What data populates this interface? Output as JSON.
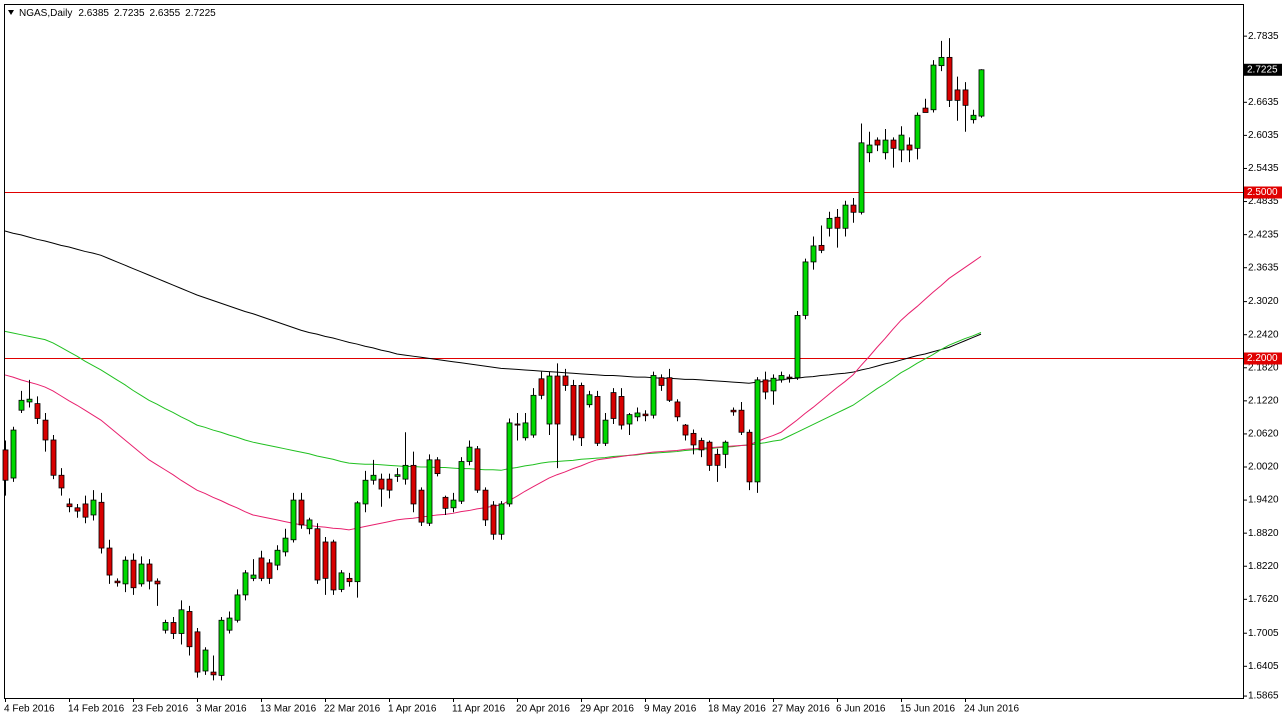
{
  "chart_data": {
    "type": "candlestick",
    "symbol": "NGAS,Daily",
    "ylim": [
      1.583,
      2.84
    ],
    "yticks": [
      2.7835,
      2.6635,
      2.6035,
      2.5435,
      2.4835,
      2.4235,
      2.3635,
      {
        "value": 2.302,
        "label": "2.3020"
      },
      {
        "value": 2.242,
        "label": "2.2420"
      },
      {
        "value": 2.182,
        "label": "2.1820"
      },
      {
        "value": 2.122,
        "label": "2.1220"
      },
      {
        "value": 2.062,
        "label": "2.0620"
      },
      {
        "value": 2.002,
        "label": "2.0020"
      },
      {
        "value": 1.942,
        "label": "1.9420"
      },
      {
        "value": 1.882,
        "label": "1.8820"
      },
      {
        "value": 1.822,
        "label": "1.8220"
      },
      {
        "value": 1.762,
        "label": "1.7620"
      },
      1.7005,
      1.6405,
      1.5865
    ],
    "up_color": "#00d800",
    "down_color": "#d80000",
    "hlines": [
      {
        "value": 2.5,
        "label": "2.5000",
        "color": "#e00000"
      },
      {
        "value": 2.2,
        "label": "2.2000",
        "color": "#e00000"
      }
    ],
    "categories": [
      "4 Feb 2016",
      null,
      null,
      null,
      null,
      null,
      null,
      null,
      "14 Feb 2016",
      null,
      null,
      null,
      null,
      null,
      null,
      null,
      "23 Feb 2016",
      null,
      null,
      null,
      null,
      null,
      null,
      null,
      "3 Mar 2016",
      null,
      null,
      null,
      null,
      null,
      null,
      null,
      "13 Mar 2016",
      null,
      null,
      null,
      null,
      null,
      null,
      null,
      "22 Mar 2016",
      null,
      null,
      null,
      null,
      null,
      null,
      null,
      "1 Apr 2016",
      null,
      null,
      null,
      null,
      null,
      null,
      null,
      "11 Apr 2016",
      null,
      null,
      null,
      null,
      null,
      null,
      null,
      "20 Apr 2016",
      null,
      null,
      null,
      null,
      null,
      null,
      null,
      "29 Apr 2016",
      null,
      null,
      null,
      null,
      null,
      null,
      null,
      "9 May 2016",
      null,
      null,
      null,
      null,
      null,
      null,
      null,
      "18 May 2016",
      null,
      null,
      null,
      null,
      null,
      null,
      null,
      "27 May 2016",
      null,
      null,
      null,
      null,
      null,
      null,
      null,
      "6 Jun 2016",
      null,
      null,
      null,
      null,
      null,
      null,
      null,
      "15 Jun 2016",
      null,
      null,
      null,
      null,
      null,
      null,
      null,
      "24 Jun 2016",
      null,
      null
    ],
    "candles": [
      [
        2.033,
        2.05,
        1.95,
        1.978
      ],
      [
        1.982,
        2.075,
        1.975,
        2.069
      ],
      [
        2.105,
        2.14,
        2.1,
        2.123
      ],
      [
        2.12,
        2.16,
        2.11,
        2.125
      ],
      [
        2.117,
        2.13,
        2.08,
        2.09
      ],
      [
        2.087,
        2.1,
        2.03,
        2.051
      ],
      [
        2.051,
        2.06,
        1.98,
        1.987
      ],
      [
        1.987,
        2.0,
        1.95,
        1.964
      ],
      [
        1.935,
        1.945,
        1.92,
        1.93
      ],
      [
        1.928,
        1.935,
        1.91,
        1.922
      ],
      [
        1.935,
        1.95,
        1.9,
        1.911
      ],
      [
        1.915,
        1.96,
        1.905,
        1.942
      ],
      [
        1.938,
        1.955,
        1.845,
        1.855
      ],
      [
        1.855,
        1.87,
        1.79,
        1.806
      ],
      [
        1.795,
        1.8,
        1.785,
        1.792
      ],
      [
        1.79,
        1.84,
        1.775,
        1.833
      ],
      [
        1.833,
        1.845,
        1.77,
        1.783
      ],
      [
        1.79,
        1.84,
        1.785,
        1.826
      ],
      [
        1.826,
        1.835,
        1.78,
        1.795
      ],
      [
        1.795,
        1.8,
        1.75,
        1.79
      ],
      [
        1.706,
        1.725,
        1.7,
        1.72
      ],
      [
        1.72,
        1.73,
        1.69,
        1.7
      ],
      [
        1.7,
        1.76,
        1.68,
        1.743
      ],
      [
        1.74,
        1.75,
        1.66,
        1.676
      ],
      [
        1.703,
        1.71,
        1.62,
        1.63
      ],
      [
        1.632,
        1.675,
        1.625,
        1.67
      ],
      [
        1.63,
        1.66,
        1.615,
        1.625
      ],
      [
        1.624,
        1.73,
        1.615,
        1.724
      ],
      [
        1.706,
        1.74,
        1.7,
        1.728
      ],
      [
        1.724,
        1.78,
        1.72,
        1.77
      ],
      [
        1.77,
        1.815,
        1.76,
        1.81
      ],
      [
        1.8,
        1.835,
        1.795,
        1.806
      ],
      [
        1.837,
        1.85,
        1.795,
        1.8
      ],
      [
        1.828,
        1.835,
        1.79,
        1.8
      ],
      [
        1.824,
        1.86,
        1.815,
        1.851
      ],
      [
        1.848,
        1.89,
        1.84,
        1.873
      ],
      [
        1.87,
        1.955,
        1.865,
        1.942
      ],
      [
        1.942,
        1.955,
        1.89,
        1.897
      ],
      [
        1.89,
        1.91,
        1.88,
        1.906
      ],
      [
        1.89,
        1.9,
        1.79,
        1.797
      ],
      [
        1.866,
        1.875,
        1.77,
        1.8
      ],
      [
        1.866,
        1.87,
        1.77,
        1.779
      ],
      [
        1.78,
        1.815,
        1.775,
        1.81
      ],
      [
        1.8,
        1.81,
        1.785,
        1.794
      ],
      [
        1.794,
        1.94,
        1.765,
        1.937
      ],
      [
        1.935,
        1.995,
        1.92,
        1.978
      ],
      [
        1.978,
        2.015,
        1.97,
        1.987
      ],
      [
        1.98,
        1.99,
        1.93,
        1.962
      ],
      [
        1.98,
        1.99,
        1.945,
        1.96
      ],
      [
        1.985,
        2.0,
        1.975,
        1.988
      ],
      [
        1.98,
        2.065,
        1.97,
        2.005
      ],
      [
        2.005,
        2.03,
        1.92,
        1.935
      ],
      [
        1.96,
        1.965,
        1.895,
        1.902
      ],
      [
        1.9,
        2.025,
        1.895,
        2.015
      ],
      [
        2.015,
        2.02,
        1.985,
        1.99
      ],
      [
        1.947,
        1.95,
        1.915,
        1.927
      ],
      [
        1.928,
        1.955,
        1.92,
        1.942
      ],
      [
        1.94,
        2.02,
        1.935,
        2.012
      ],
      [
        2.012,
        2.05,
        2.005,
        2.038
      ],
      [
        2.035,
        2.04,
        1.955,
        1.96
      ],
      [
        1.96,
        1.965,
        1.895,
        1.906
      ],
      [
        1.933,
        1.94,
        1.87,
        1.88
      ],
      [
        1.88,
        1.94,
        1.87,
        1.935
      ],
      [
        1.935,
        2.09,
        1.93,
        2.082
      ],
      [
        2.08,
        2.1,
        2.05,
        2.078
      ],
      [
        2.055,
        2.1,
        2.05,
        2.082
      ],
      [
        2.06,
        2.145,
        2.055,
        2.132
      ],
      [
        2.162,
        2.175,
        2.125,
        2.132
      ],
      [
        2.08,
        2.175,
        2.06,
        2.167
      ],
      [
        2.167,
        2.19,
        2.0,
        2.08
      ],
      [
        2.167,
        2.18,
        2.14,
        2.15
      ],
      [
        2.15,
        2.16,
        2.05,
        2.06
      ],
      [
        2.15,
        2.155,
        2.04,
        2.055
      ],
      [
        2.115,
        2.14,
        2.11,
        2.133
      ],
      [
        2.13,
        2.14,
        2.04,
        2.045
      ],
      [
        2.045,
        2.1,
        2.04,
        2.087
      ],
      [
        2.137,
        2.145,
        2.08,
        2.09
      ],
      [
        2.13,
        2.145,
        2.07,
        2.078
      ],
      [
        2.08,
        2.1,
        2.06,
        2.097
      ],
      [
        2.093,
        2.11,
        2.085,
        2.1
      ],
      [
        2.098,
        2.105,
        2.085,
        2.095
      ],
      [
        2.096,
        2.175,
        2.09,
        2.168
      ],
      [
        2.164,
        2.17,
        2.14,
        2.15
      ],
      [
        2.164,
        2.18,
        2.12,
        2.123
      ],
      [
        2.12,
        2.125,
        2.085,
        2.093
      ],
      [
        2.078,
        2.08,
        2.05,
        2.06
      ],
      [
        2.063,
        2.07,
        2.025,
        2.042
      ],
      [
        2.05,
        2.055,
        2.02,
        2.033
      ],
      [
        2.047,
        2.05,
        1.995,
        2.005
      ],
      [
        2.025,
        2.035,
        1.975,
        2.005
      ],
      [
        2.025,
        2.05,
        2.0,
        2.047
      ],
      [
        2.105,
        2.11,
        2.095,
        2.102
      ],
      [
        2.105,
        2.12,
        2.06,
        2.065
      ],
      [
        2.065,
        2.07,
        1.96,
        1.975
      ],
      [
        1.975,
        2.165,
        1.955,
        2.16
      ],
      [
        2.16,
        2.175,
        2.125,
        2.138
      ],
      [
        2.14,
        2.17,
        2.115,
        2.163
      ],
      [
        2.16,
        2.175,
        2.155,
        2.168
      ],
      [
        2.165,
        2.17,
        2.155,
        2.163
      ],
      [
        2.164,
        2.285,
        2.16,
        2.277
      ],
      [
        2.277,
        2.38,
        2.27,
        2.374
      ],
      [
        2.374,
        2.42,
        2.36,
        2.403
      ],
      [
        2.404,
        2.44,
        2.39,
        2.395
      ],
      [
        2.435,
        2.465,
        2.42,
        2.453
      ],
      [
        2.455,
        2.47,
        2.4,
        2.435
      ],
      [
        2.435,
        2.485,
        2.42,
        2.477
      ],
      [
        2.477,
        2.49,
        2.445,
        2.464
      ],
      [
        2.464,
        2.625,
        2.46,
        2.59
      ],
      [
        2.572,
        2.61,
        2.555,
        2.586
      ],
      [
        2.595,
        2.6,
        2.575,
        2.586
      ],
      [
        2.572,
        2.615,
        2.56,
        2.595
      ],
      [
        2.595,
        2.6,
        2.545,
        2.58
      ],
      [
        2.577,
        2.62,
        2.555,
        2.604
      ],
      [
        2.586,
        2.6,
        2.555,
        2.577
      ],
      [
        2.58,
        2.645,
        2.56,
        2.64
      ],
      [
        2.653,
        2.67,
        2.645,
        2.645
      ],
      [
        2.65,
        2.74,
        2.645,
        2.731
      ],
      [
        2.73,
        2.775,
        2.72,
        2.745
      ],
      [
        2.745,
        2.78,
        2.655,
        2.667
      ],
      [
        2.686,
        2.71,
        2.63,
        2.667
      ],
      [
        2.686,
        2.7,
        2.61,
        2.658
      ],
      [
        2.632,
        2.65,
        2.625,
        2.64
      ],
      [
        2.6385,
        2.7235,
        2.6355,
        2.7225
      ]
    ],
    "series": [
      {
        "color": "#000000",
        "values": [
          2.43,
          2.426,
          2.423,
          2.419,
          2.415,
          2.412,
          2.408,
          2.404,
          2.401,
          2.397,
          2.393,
          2.39,
          2.386,
          2.38,
          2.374,
          2.368,
          2.362,
          2.356,
          2.35,
          2.344,
          2.338,
          2.332,
          2.326,
          2.32,
          2.314,
          2.309,
          2.304,
          2.299,
          2.294,
          2.289,
          2.284,
          2.28,
          2.275,
          2.27,
          2.265,
          2.26,
          2.255,
          2.25,
          2.246,
          2.243,
          2.239,
          2.236,
          2.232,
          2.228,
          2.225,
          2.221,
          2.218,
          2.214,
          2.211,
          2.207,
          2.205,
          2.203,
          2.201,
          2.199,
          2.197,
          2.195,
          2.193,
          2.191,
          2.189,
          2.187,
          2.185,
          2.183,
          2.181,
          2.18,
          2.179,
          2.178,
          2.177,
          2.176,
          2.175,
          2.174,
          2.173,
          2.172,
          2.171,
          2.17,
          2.169,
          2.168,
          2.168,
          2.167,
          2.166,
          2.165,
          2.165,
          2.164,
          2.163,
          2.163,
          2.162,
          2.161,
          2.161,
          2.16,
          2.159,
          2.158,
          2.157,
          2.156,
          2.155,
          2.154,
          2.156,
          2.157,
          2.159,
          2.16,
          2.162,
          2.163,
          2.165,
          2.166,
          2.168,
          2.169,
          2.171,
          2.172,
          2.174,
          2.178,
          2.181,
          2.185,
          2.189,
          2.192,
          2.196,
          2.2,
          2.204,
          2.207,
          2.211,
          2.215,
          2.219,
          2.225,
          2.231,
          2.237,
          2.243
        ]
      },
      {
        "color": "#20c020",
        "values": [
          2.248,
          2.245,
          2.242,
          2.239,
          2.236,
          2.233,
          2.227,
          2.219,
          2.211,
          2.203,
          2.194,
          2.186,
          2.178,
          2.169,
          2.16,
          2.151,
          2.141,
          2.132,
          2.123,
          2.116,
          2.108,
          2.101,
          2.093,
          2.086,
          2.078,
          2.074,
          2.069,
          2.065,
          2.06,
          2.056,
          2.051,
          2.047,
          2.044,
          2.041,
          2.038,
          2.035,
          2.032,
          2.029,
          2.026,
          2.022,
          2.019,
          2.016,
          2.012,
          2.009,
          2.008,
          2.007,
          2.007,
          2.006,
          2.005,
          2.004,
          2.003,
          2.003,
          2.002,
          2.002,
          2.001,
          2.001,
          2.0,
          1.999,
          1.999,
          1.998,
          1.997,
          1.997,
          1.996,
          1.999,
          2.001,
          2.004,
          2.006,
          2.009,
          2.011,
          2.012,
          2.013,
          2.014,
          2.016,
          2.017,
          2.018,
          2.019,
          2.021,
          2.022,
          2.023,
          2.024,
          2.026,
          2.027,
          2.028,
          2.029,
          2.03,
          2.032,
          2.033,
          2.034,
          2.035,
          2.037,
          2.038,
          2.039,
          2.041,
          2.042,
          2.044,
          2.046,
          2.049,
          2.051,
          2.058,
          2.065,
          2.072,
          2.079,
          2.086,
          2.093,
          2.1,
          2.107,
          2.114,
          2.124,
          2.134,
          2.144,
          2.153,
          2.163,
          2.173,
          2.181,
          2.19,
          2.198,
          2.206,
          2.215,
          2.223,
          2.229,
          2.235,
          2.24,
          2.246
        ]
      },
      {
        "color": "#e8206e",
        "values": [
          2.169,
          2.165,
          2.16,
          2.156,
          2.152,
          2.147,
          2.14,
          2.131,
          2.122,
          2.114,
          2.105,
          2.096,
          2.087,
          2.075,
          2.063,
          2.051,
          2.039,
          2.027,
          2.015,
          2.006,
          1.997,
          1.988,
          1.978,
          1.969,
          1.96,
          1.954,
          1.947,
          1.941,
          1.934,
          1.928,
          1.921,
          1.915,
          1.912,
          1.909,
          1.906,
          1.903,
          1.9,
          1.897,
          1.896,
          1.894,
          1.893,
          1.891,
          1.89,
          1.888,
          1.891,
          1.894,
          1.897,
          1.9,
          1.903,
          1.906,
          1.908,
          1.909,
          1.911,
          1.913,
          1.915,
          1.916,
          1.918,
          1.921,
          1.923,
          1.926,
          1.928,
          1.931,
          1.933,
          1.941,
          1.949,
          1.958,
          1.966,
          1.974,
          1.982,
          1.988,
          1.993,
          1.999,
          2.004,
          2.01,
          2.015,
          2.017,
          2.019,
          2.021,
          2.023,
          2.025,
          2.027,
          2.029,
          2.03,
          2.031,
          2.032,
          2.034,
          2.035,
          2.036,
          2.037,
          2.038,
          2.039,
          2.04,
          2.041,
          2.042,
          2.048,
          2.054,
          2.059,
          2.065,
          2.076,
          2.087,
          2.099,
          2.11,
          2.122,
          2.134,
          2.146,
          2.157,
          2.169,
          2.186,
          2.202,
          2.219,
          2.235,
          2.252,
          2.268,
          2.281,
          2.293,
          2.306,
          2.319,
          2.331,
          2.344,
          2.354,
          2.364,
          2.374,
          2.384
        ]
      }
    ]
  }
}
